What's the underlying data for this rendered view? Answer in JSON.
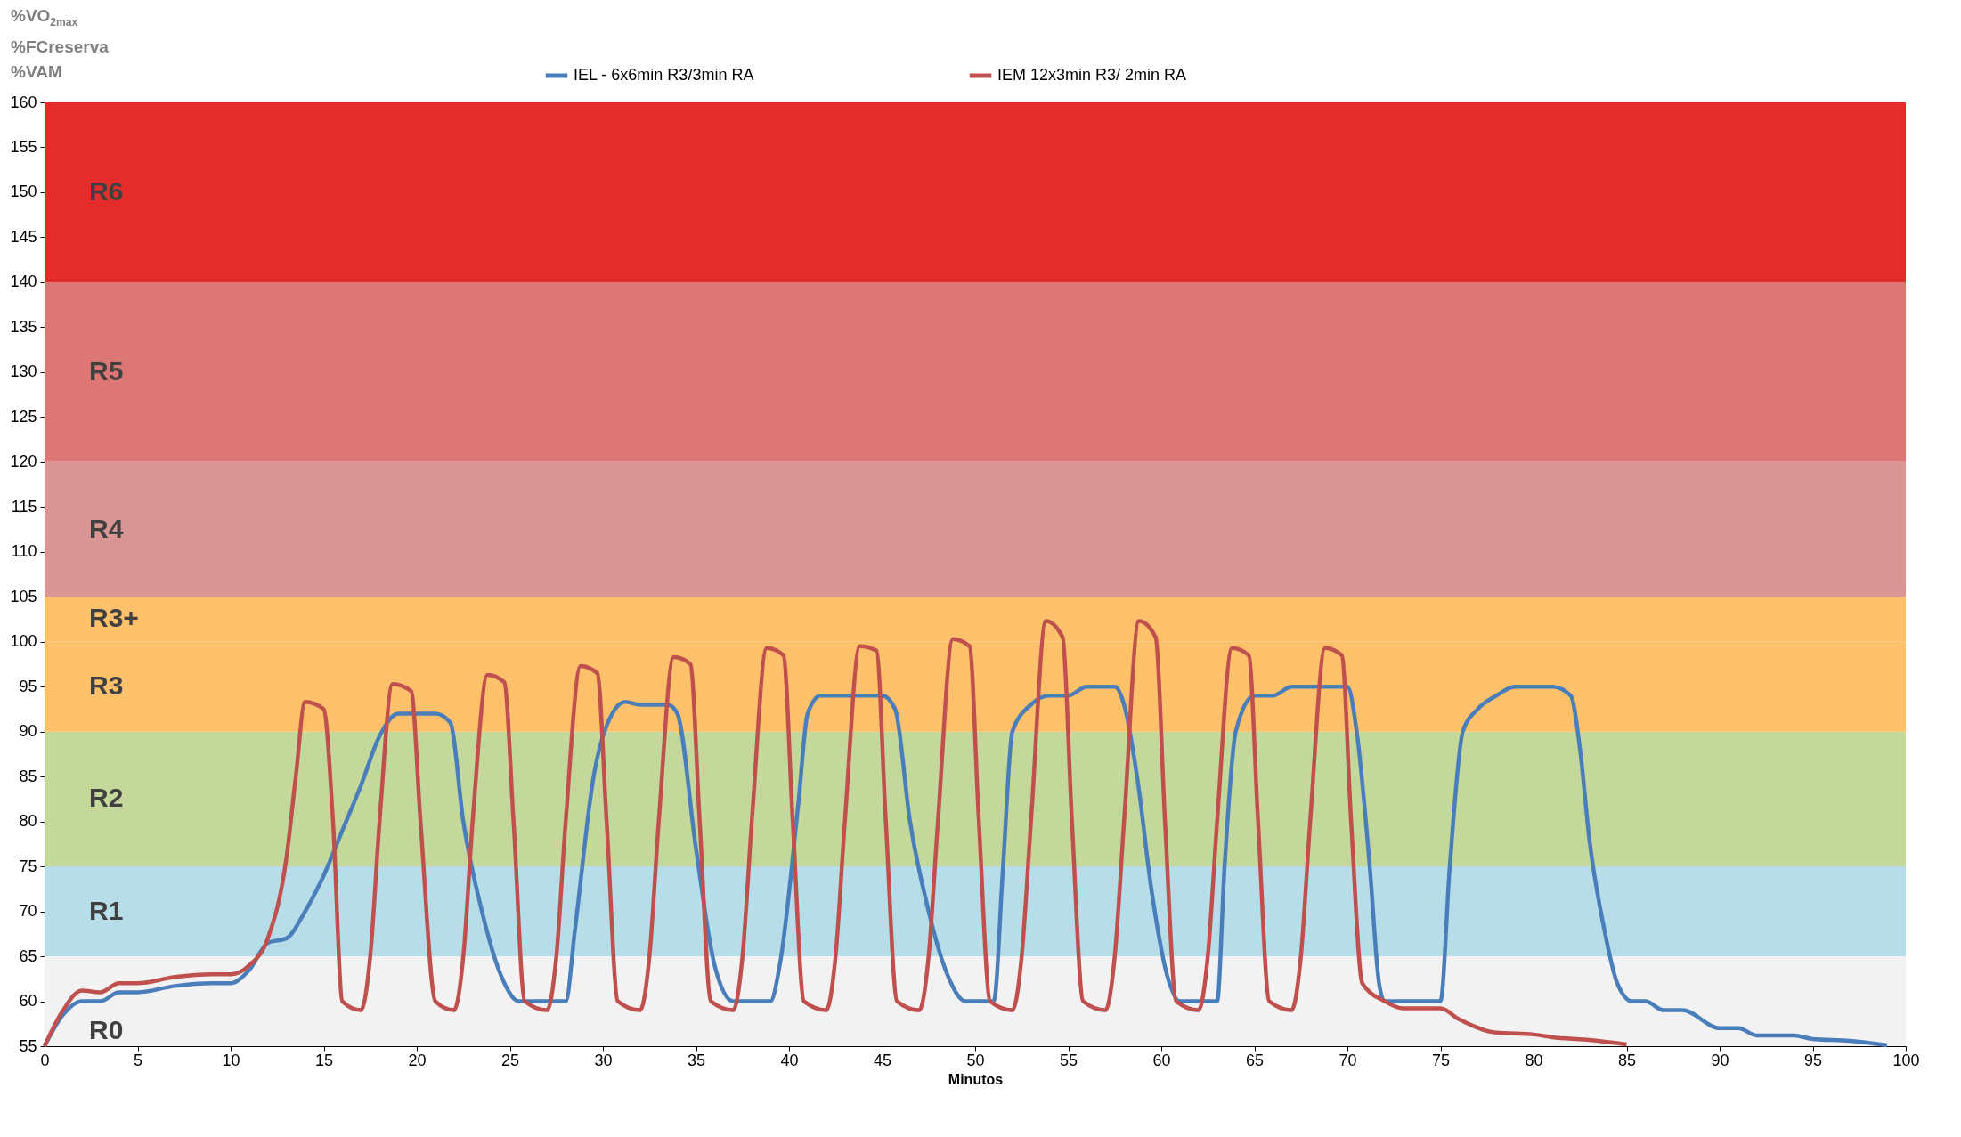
{
  "chart_data": {
    "type": "line",
    "ylabel": "%VO$_{2max}$\n%FCreserva\n%VAM",
    "xlabel": "Minutos",
    "xlim": [
      0,
      100
    ],
    "xticks": [
      0,
      5,
      10,
      15,
      20,
      25,
      30,
      35,
      40,
      45,
      50,
      55,
      60,
      65,
      70,
      75,
      80,
      85,
      90,
      95,
      100
    ],
    "ylim": [
      55,
      160
    ],
    "yticks": [
      55,
      60,
      65,
      70,
      75,
      80,
      85,
      90,
      95,
      100,
      105,
      110,
      115,
      120,
      125,
      130,
      135,
      140,
      145,
      150,
      155,
      160
    ],
    "grid": false,
    "legend": "top",
    "marker": "none",
    "line_style": "solid",
    "bands": [
      {
        "axis": "y",
        "from": 55,
        "to": 65,
        "label": "R0",
        "color": "#f2f2f2"
      },
      {
        "axis": "y",
        "from": 65,
        "to": 75,
        "label": "R1",
        "color": "#b7dee8"
      },
      {
        "axis": "y",
        "from": 75,
        "to": 90,
        "label": "R2",
        "color": "#c4d89b"
      },
      {
        "axis": "y",
        "from": 90,
        "to": 100,
        "label": "R3",
        "color": "#fdc16c"
      },
      {
        "axis": "y",
        "from": 100,
        "to": 105,
        "label": "R3+",
        "color": "#fdc16c"
      },
      {
        "axis": "y",
        "from": 105,
        "to": 120,
        "label": "R4",
        "color": "#d99694"
      },
      {
        "axis": "y",
        "from": 120,
        "to": 140,
        "label": "R5",
        "color": "#dd7776"
      },
      {
        "axis": "y",
        "from": 140,
        "to": 160,
        "label": "R6",
        "color": "#e42d2b"
      }
    ],
    "series": [
      {
        "name": "IEL - 6x6min R3/3min RA",
        "color": "#4a7ebb",
        "x": [
          0,
          1,
          2,
          3,
          4,
          5,
          7,
          9,
          10,
          11,
          12,
          13,
          14,
          15,
          16,
          17,
          18,
          19,
          20,
          21,
          21.8,
          22.5,
          23.5,
          24.5,
          25.5,
          27,
          28,
          28.5,
          29.5,
          30.5,
          31.2,
          32,
          33.5,
          34,
          35,
          36,
          37,
          38,
          39,
          39.5,
          40.5,
          41,
          41.7,
          43,
          45,
          45.7,
          46.5,
          47.5,
          48.5,
          49.5,
          50.5,
          51,
          51.5,
          52,
          53,
          54,
          55,
          56,
          57.5,
          58,
          58.7,
          59.5,
          60.3,
          61,
          62,
          63,
          63.4,
          64,
          65,
          66,
          67,
          69,
          70,
          70.5,
          71.2,
          71.7,
          72,
          73,
          74,
          75,
          75.5,
          76.2,
          77,
          78,
          79,
          80,
          81,
          82,
          82.5,
          83,
          83.8,
          84.5,
          85.3,
          86,
          87,
          88,
          90,
          91,
          92,
          94,
          95,
          97,
          99
        ],
        "values": [
          55,
          58.5,
          60,
          60,
          61,
          61,
          61.7,
          62,
          62,
          63.5,
          66.5,
          67,
          70,
          74,
          79,
          84,
          89.5,
          92,
          92,
          92,
          91,
          80,
          70,
          63,
          60,
          60,
          60,
          68,
          85,
          92,
          93.3,
          93,
          93,
          92,
          77,
          64,
          60,
          60,
          60,
          64,
          82,
          92,
          94,
          94,
          94,
          92.5,
          80,
          70,
          63,
          60,
          60,
          60,
          75,
          90,
          93,
          94,
          94,
          95,
          95,
          93,
          85,
          72,
          63,
          60,
          60,
          60,
          75,
          90,
          94,
          94,
          95,
          95,
          95,
          90,
          75,
          62,
          60,
          60,
          60,
          60,
          75,
          90,
          92.5,
          94,
          95,
          95,
          95,
          94,
          88,
          78,
          68,
          62,
          60,
          60,
          59,
          59,
          57,
          57,
          56.2,
          56.2,
          55.8,
          55.6,
          55.1
        ]
      },
      {
        "name": "IEM 12x3min R3/ 2min RA",
        "color": "#c0504d",
        "x": [
          0,
          1,
          2,
          3,
          4,
          5,
          7,
          9,
          10,
          11,
          12,
          13,
          13.5,
          14,
          15,
          15.5,
          16,
          17,
          17.5,
          18,
          18.7,
          19.7,
          20.2,
          21,
          22,
          22.5,
          23,
          23.8,
          24.7,
          25.2,
          25.8,
          27,
          27.5,
          28,
          28.8,
          29.7,
          30.2,
          30.8,
          32,
          32.5,
          33,
          33.8,
          34.7,
          35.2,
          35.8,
          37,
          37.5,
          38,
          38.8,
          39.7,
          40.2,
          40.8,
          42,
          42.5,
          43,
          43.8,
          44.7,
          45.2,
          45.8,
          47,
          47.5,
          48,
          48.8,
          49.7,
          50.2,
          50.8,
          52,
          52.5,
          53,
          53.8,
          54.7,
          55.2,
          55.8,
          57,
          57.5,
          58,
          58.8,
          59.7,
          60.2,
          60.8,
          62,
          62.5,
          63,
          63.8,
          64.7,
          65.2,
          65.8,
          67,
          67.5,
          68,
          68.8,
          69.7,
          70.2,
          70.8,
          72,
          73,
          75,
          76,
          78,
          80,
          81,
          83,
          85
        ],
        "values": [
          55,
          59,
          61.2,
          61,
          62,
          62,
          62.7,
          63,
          63,
          64,
          67,
          76,
          85,
          93.3,
          92.5,
          80,
          60,
          59,
          65,
          80,
          95.3,
          94.5,
          80,
          60,
          59,
          65,
          80,
          96.3,
          95.5,
          80,
          60,
          59,
          65,
          80,
          97.3,
          96.5,
          80,
          60,
          59,
          65,
          80,
          98.3,
          97.5,
          80,
          60,
          59,
          65,
          80,
          99.3,
          98.5,
          80,
          60,
          59,
          65,
          80,
          99.5,
          99,
          80,
          60,
          59,
          65,
          80,
          100.3,
          99.5,
          80,
          60,
          59,
          65,
          80,
          102.3,
          100.5,
          80,
          60,
          59,
          65,
          80,
          102.3,
          100.5,
          80,
          60,
          59,
          65,
          80,
          99.3,
          98.5,
          80,
          60,
          59,
          65,
          80,
          99.3,
          98.5,
          80,
          62,
          60,
          59.2,
          59.2,
          58,
          56.5,
          56.3,
          56,
          55.7,
          55.2
        ]
      }
    ]
  }
}
